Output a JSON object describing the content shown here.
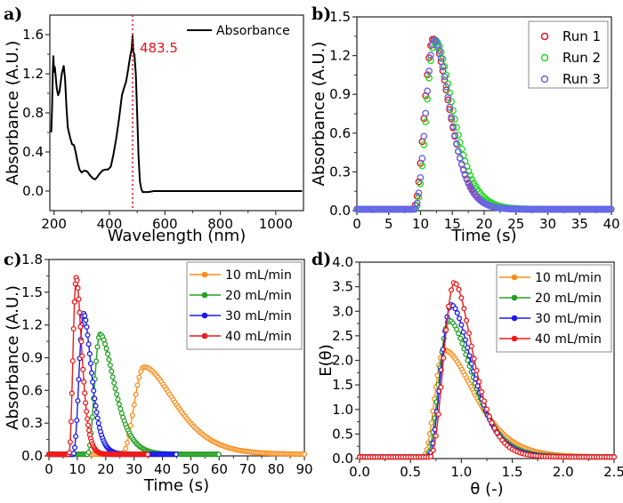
{
  "chart_data": [
    {
      "id": "a",
      "type": "line",
      "panel_label": "a)",
      "title": "",
      "xlabel": "Wavelength (nm)",
      "ylabel": "Absorbance (A.U.)",
      "xlim": [
        185,
        1100
      ],
      "ylim": [
        -0.2,
        1.8
      ],
      "xticks": [
        200,
        400,
        600,
        800,
        1000
      ],
      "xtick_labels": [
        "200",
        "400",
        "600",
        "800",
        "1000"
      ],
      "yticks": [
        0.0,
        0.4,
        0.8,
        1.2,
        1.6
      ],
      "ytick_labels": [
        "0.0",
        "0.4",
        "0.8",
        "1.2",
        "1.6"
      ],
      "legend": {
        "position": "top-right",
        "entries": [
          "Absorbance"
        ]
      },
      "annotations": [
        {
          "text": "483.5",
          "x": 483.5,
          "style": "red dotted vertical line"
        }
      ],
      "series": [
        {
          "name": "Absorbance",
          "color": "#000000",
          "x": [
            190,
            193,
            196,
            198,
            200,
            203,
            206,
            210,
            215,
            220,
            228,
            235,
            240,
            245,
            250,
            258,
            265,
            272,
            278,
            285,
            292,
            300,
            310,
            320,
            330,
            340,
            348,
            355,
            365,
            375,
            385,
            395,
            405,
            415,
            425,
            435,
            445,
            452,
            460,
            468,
            475,
            480,
            483.5,
            486,
            490,
            495,
            500,
            505,
            510,
            515,
            520,
            530,
            540,
            560,
            600,
            700,
            800,
            900,
            1000,
            1095
          ],
          "y": [
            0.6,
            0.85,
            1.25,
            1.38,
            1.22,
            1.27,
            1.18,
            1.05,
            0.98,
            1.02,
            1.2,
            1.28,
            1.15,
            0.85,
            0.65,
            0.55,
            0.48,
            0.47,
            0.4,
            0.3,
            0.22,
            0.19,
            0.21,
            0.2,
            0.16,
            0.13,
            0.12,
            0.14,
            0.18,
            0.21,
            0.22,
            0.22,
            0.25,
            0.38,
            0.55,
            0.75,
            0.98,
            1.05,
            1.12,
            1.25,
            1.38,
            1.45,
            1.59,
            1.42,
            1.4,
            1.2,
            0.8,
            0.35,
            0.1,
            0.02,
            -0.01,
            -0.01,
            -0.01,
            0.0,
            0.0,
            0.0,
            0.0,
            0.0,
            0.0,
            0.0
          ]
        }
      ]
    },
    {
      "id": "b",
      "type": "scatter",
      "panel_label": "b)",
      "title": "",
      "xlabel": "Time (s)",
      "ylabel": "Absorbance (A.U.)",
      "xlim": [
        0,
        40
      ],
      "ylim": [
        0,
        1.5
      ],
      "xticks": [
        0,
        5,
        10,
        15,
        20,
        25,
        30,
        35,
        40
      ],
      "xtick_labels": [
        "0",
        "5",
        "10",
        "15",
        "20",
        "25",
        "30",
        "35",
        "40"
      ],
      "yticks": [
        0.0,
        0.3,
        0.6,
        0.9,
        1.2,
        1.5
      ],
      "ytick_labels": [
        "0.0",
        "0.3",
        "0.6",
        "0.9",
        "1.2",
        "1.5"
      ],
      "legend": {
        "position": "top-right",
        "entries": [
          "Run 1",
          "Run 2",
          "Run 3"
        ]
      },
      "marker": "open-circle",
      "series": [
        {
          "name": "Run 1",
          "color": "#e8101a",
          "peak_x": 12.0,
          "peak_y": 1.32,
          "onset": 8.8,
          "rise": 3.2,
          "tau": 2.2
        },
        {
          "name": "Run 2",
          "color": "#22dd22",
          "peak_x": 12.3,
          "peak_y": 1.31,
          "onset": 9.1,
          "rise": 3.2,
          "tau": 2.4
        },
        {
          "name": "Run 3",
          "color": "#6666ee",
          "peak_x": 12.2,
          "peak_y": 1.31,
          "onset": 9.0,
          "rise": 3.2,
          "tau": 2.1
        }
      ]
    },
    {
      "id": "c",
      "type": "line",
      "panel_label": "c)",
      "title": "",
      "xlabel": "Time (s)",
      "ylabel": "Absorbance (A.U.)",
      "xlim": [
        0,
        90
      ],
      "ylim": [
        0,
        1.8
      ],
      "xticks": [
        0,
        10,
        20,
        30,
        40,
        50,
        60,
        70,
        80,
        90
      ],
      "xtick_labels": [
        "0",
        "10",
        "20",
        "30",
        "40",
        "50",
        "60",
        "70",
        "80",
        "90"
      ],
      "yticks": [
        0.0,
        0.3,
        0.6,
        0.9,
        1.2,
        1.5,
        1.8
      ],
      "ytick_labels": [
        "0.0",
        "0.3",
        "0.6",
        "0.9",
        "1.2",
        "1.5",
        "1.8"
      ],
      "legend": {
        "position": "top-right",
        "entries": [
          "10 mL/min",
          "20 mL/min",
          "30 mL/min",
          "40 mL/min"
        ]
      },
      "marker": "circle-with-line",
      "series": [
        {
          "name": "10 mL/min",
          "color": "#ff8c1a",
          "x_start": 0,
          "x_end": 90,
          "onset": 25.5,
          "peak_x": 33.5,
          "peak_y": 0.8,
          "tau": 9.5,
          "step": 0.6
        },
        {
          "name": "20 mL/min",
          "color": "#22a022",
          "x_start": 0,
          "x_end": 60,
          "onset": 13.5,
          "peak_x": 18.0,
          "peak_y": 1.1,
          "tau": 4.3,
          "step": 0.45
        },
        {
          "name": "30 mL/min",
          "color": "#1a1aee",
          "x_start": 0,
          "x_end": 45,
          "onset": 8.5,
          "peak_x": 12.2,
          "peak_y": 1.29,
          "tau": 2.4,
          "step": 0.35
        },
        {
          "name": "40 mL/min",
          "color": "#ee1a1a",
          "x_start": 0,
          "x_end": 35,
          "onset": 7.0,
          "peak_x": 9.6,
          "peak_y": 1.62,
          "tau": 1.7,
          "step": 0.3
        }
      ]
    },
    {
      "id": "d",
      "type": "line",
      "panel_label": "d)",
      "title": "",
      "xlabel": "θ (-)",
      "ylabel": "E(θ)",
      "xlim": [
        0,
        2.5
      ],
      "ylim": [
        0,
        4.0
      ],
      "xticks": [
        0.0,
        0.5,
        1.0,
        1.5,
        2.0,
        2.5
      ],
      "xtick_labels": [
        "0.0",
        "0.5",
        "1.0",
        "1.5",
        "2.0",
        "2.5"
      ],
      "yticks": [
        0.0,
        0.5,
        1.0,
        1.5,
        2.0,
        2.5,
        3.0,
        3.5,
        4.0
      ],
      "ytick_labels": [
        "0.0",
        "0.5",
        "1.0",
        "1.5",
        "2.0",
        "2.5",
        "3.0",
        "3.5",
        "4.0"
      ],
      "legend": {
        "position": "top-right",
        "entries": [
          "10 mL/min",
          "20 mL/min",
          "30 mL/min",
          "40 mL/min"
        ]
      },
      "marker": "circle-with-line",
      "series": [
        {
          "name": "10 mL/min",
          "color": "#ff8c1a",
          "onset": 0.62,
          "peak_x": 0.83,
          "peak_y": 2.18,
          "tau": 0.26,
          "step": 0.015
        },
        {
          "name": "20 mL/min",
          "color": "#22a022",
          "onset": 0.65,
          "peak_x": 0.88,
          "peak_y": 2.78,
          "tau": 0.2,
          "step": 0.018
        },
        {
          "name": "30 mL/min",
          "color": "#1a1aee",
          "onset": 0.67,
          "peak_x": 0.9,
          "peak_y": 3.1,
          "tau": 0.18,
          "step": 0.02
        },
        {
          "name": "40 mL/min",
          "color": "#ee1a1a",
          "onset": 0.69,
          "peak_x": 0.93,
          "peak_y": 3.55,
          "tau": 0.16,
          "step": 0.025
        }
      ]
    }
  ]
}
